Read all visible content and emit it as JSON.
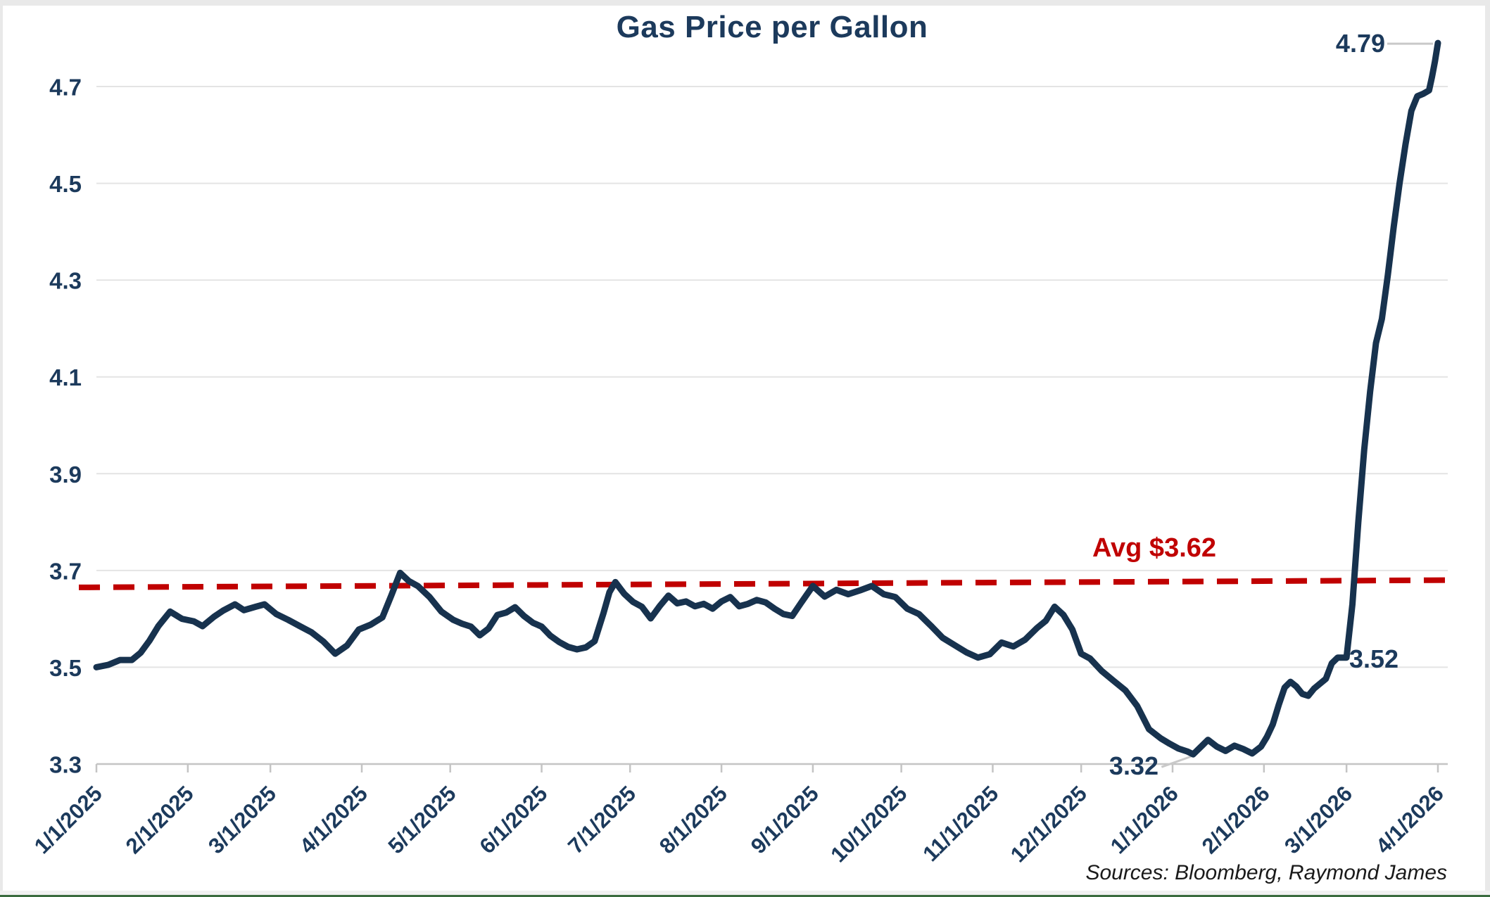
{
  "chart": {
    "title": "Gas Price per Gallon",
    "source_note": "Sources: Bloomberg, Raymond James",
    "annotations": {
      "peak": "4.79",
      "pre_surge": "3.52",
      "low": "3.32",
      "avg_label": "Avg $3.62"
    },
    "colors": {
      "line": "#17324E",
      "label_text": "#1C3A5C",
      "avg_line": "#C00000",
      "gridline": "#E4E4E4",
      "axis": "#C4C4C4",
      "leader": "#C9C9C9",
      "source_text": "#1A1A1A",
      "bottom_border_green": "#3A6B3E"
    }
  },
  "chart_data": {
    "type": "line",
    "title": "Gas Price per Gallon",
    "xlabel": "",
    "ylabel": "",
    "x_range": [
      "1/1/2025",
      "4/1/2026"
    ],
    "x_tick_labels": [
      "1/1/2025",
      "2/1/2025",
      "3/1/2025",
      "4/1/2025",
      "5/1/2025",
      "6/1/2025",
      "7/1/2025",
      "8/1/2025",
      "9/1/2025",
      "10/1/2025",
      "11/1/2025",
      "12/1/2025",
      "1/1/2026",
      "2/1/2026",
      "3/1/2026",
      "4/1/2026"
    ],
    "y_ticks": [
      3.3,
      3.5,
      3.7,
      3.9,
      4.1,
      4.3,
      4.5,
      4.7
    ],
    "ylim": [
      3.3,
      4.84
    ],
    "grid": "horizontal",
    "legend": "none",
    "avg_line": {
      "label": "Avg $3.62",
      "stated_value": 3.62,
      "drawn_start_value": 3.665,
      "drawn_end_value": 3.68,
      "style": "dashed",
      "color": "#C00000"
    },
    "annotations": [
      {
        "text": "4.79",
        "date": "4/1/2026",
        "value": 4.79,
        "leader_line": true
      },
      {
        "text": "3.52",
        "date": "3/1/2026",
        "value": 3.52,
        "leader_line": false
      },
      {
        "text": "3.32",
        "date": "1/8/2026",
        "value": 3.32,
        "leader_line": true
      }
    ],
    "series": [
      {
        "name": "Gas Price per Gallon",
        "color": "#17324E",
        "points": [
          [
            "1/1/2025",
            3.5
          ],
          [
            "1/5/2025",
            3.505
          ],
          [
            "1/9/2025",
            3.515
          ],
          [
            "1/13/2025",
            3.515
          ],
          [
            "1/16/2025",
            3.53
          ],
          [
            "1/19/2025",
            3.555
          ],
          [
            "1/22/2025",
            3.585
          ],
          [
            "1/26/2025",
            3.615
          ],
          [
            "1/30/2025",
            3.6
          ],
          [
            "2/3/2025",
            3.595
          ],
          [
            "2/6/2025",
            3.585
          ],
          [
            "2/10/2025",
            3.605
          ],
          [
            "2/13/2025",
            3.617
          ],
          [
            "2/17/2025",
            3.63
          ],
          [
            "2/20/2025",
            3.618
          ],
          [
            "2/24/2025",
            3.625
          ],
          [
            "2/27/2025",
            3.63
          ],
          [
            "3/3/2025",
            3.61
          ],
          [
            "3/7/2025",
            3.598
          ],
          [
            "3/11/2025",
            3.585
          ],
          [
            "3/15/2025",
            3.572
          ],
          [
            "3/19/2025",
            3.553
          ],
          [
            "3/23/2025",
            3.528
          ],
          [
            "3/27/2025",
            3.545
          ],
          [
            "3/31/2025",
            3.578
          ],
          [
            "4/4/2025",
            3.588
          ],
          [
            "4/8/2025",
            3.603
          ],
          [
            "4/11/2025",
            3.648
          ],
          [
            "4/14/2025",
            3.695
          ],
          [
            "4/17/2025",
            3.678
          ],
          [
            "4/20/2025",
            3.668
          ],
          [
            "4/24/2025",
            3.645
          ],
          [
            "4/28/2025",
            3.615
          ],
          [
            "5/2/2025",
            3.598
          ],
          [
            "5/5/2025",
            3.59
          ],
          [
            "5/8/2025",
            3.584
          ],
          [
            "5/11/2025",
            3.566
          ],
          [
            "5/14/2025",
            3.58
          ],
          [
            "5/17/2025",
            3.608
          ],
          [
            "5/20/2025",
            3.613
          ],
          [
            "5/23/2025",
            3.624
          ],
          [
            "5/26/2025",
            3.606
          ],
          [
            "5/29/2025",
            3.592
          ],
          [
            "6/1/2025",
            3.584
          ],
          [
            "6/4/2025",
            3.565
          ],
          [
            "6/7/2025",
            3.552
          ],
          [
            "6/10/2025",
            3.542
          ],
          [
            "6/13/2025",
            3.537
          ],
          [
            "6/16/2025",
            3.541
          ],
          [
            "6/19/2025",
            3.554
          ],
          [
            "6/22/2025",
            3.612
          ],
          [
            "6/24/2025",
            3.655
          ],
          [
            "6/26/2025",
            3.676
          ],
          [
            "6/29/2025",
            3.652
          ],
          [
            "7/2/2025",
            3.635
          ],
          [
            "7/5/2025",
            3.625
          ],
          [
            "7/8/2025",
            3.601
          ],
          [
            "7/11/2025",
            3.626
          ],
          [
            "7/14/2025",
            3.648
          ],
          [
            "7/17/2025",
            3.632
          ],
          [
            "7/20/2025",
            3.636
          ],
          [
            "7/23/2025",
            3.626
          ],
          [
            "7/26/2025",
            3.631
          ],
          [
            "7/29/2025",
            3.621
          ],
          [
            "8/1/2025",
            3.636
          ],
          [
            "8/4/2025",
            3.645
          ],
          [
            "8/7/2025",
            3.626
          ],
          [
            "8/10/2025",
            3.631
          ],
          [
            "8/13/2025",
            3.639
          ],
          [
            "8/16/2025",
            3.634
          ],
          [
            "8/19/2025",
            3.621
          ],
          [
            "8/22/2025",
            3.61
          ],
          [
            "8/25/2025",
            3.606
          ],
          [
            "8/28/2025",
            3.633
          ],
          [
            "9/1/2025",
            3.668
          ],
          [
            "9/5/2025",
            3.646
          ],
          [
            "9/9/2025",
            3.66
          ],
          [
            "9/13/2025",
            3.651
          ],
          [
            "9/17/2025",
            3.659
          ],
          [
            "9/21/2025",
            3.668
          ],
          [
            "9/25/2025",
            3.651
          ],
          [
            "9/29/2025",
            3.645
          ],
          [
            "10/3/2025",
            3.621
          ],
          [
            "10/7/2025",
            3.61
          ],
          [
            "10/11/2025",
            3.586
          ],
          [
            "10/15/2025",
            3.561
          ],
          [
            "10/19/2025",
            3.546
          ],
          [
            "10/23/2025",
            3.531
          ],
          [
            "10/27/2025",
            3.52
          ],
          [
            "10/31/2025",
            3.527
          ],
          [
            "11/4/2025",
            3.551
          ],
          [
            "11/8/2025",
            3.543
          ],
          [
            "11/12/2025",
            3.557
          ],
          [
            "11/16/2025",
            3.581
          ],
          [
            "11/19/2025",
            3.596
          ],
          [
            "11/22/2025",
            3.625
          ],
          [
            "11/25/2025",
            3.608
          ],
          [
            "11/28/2025",
            3.578
          ],
          [
            "12/1/2025",
            3.528
          ],
          [
            "12/4/2025",
            3.518
          ],
          [
            "12/8/2025",
            3.492
          ],
          [
            "12/12/2025",
            3.472
          ],
          [
            "12/16/2025",
            3.452
          ],
          [
            "12/20/2025",
            3.42
          ],
          [
            "12/24/2025",
            3.372
          ],
          [
            "12/28/2025",
            3.353
          ],
          [
            "12/31/2025",
            3.342
          ],
          [
            "1/3/2026",
            3.332
          ],
          [
            "1/6/2026",
            3.326
          ],
          [
            "1/8/2026",
            3.32
          ],
          [
            "1/11/2026",
            3.338
          ],
          [
            "1/13/2026",
            3.35
          ],
          [
            "1/16/2026",
            3.336
          ],
          [
            "1/19/2026",
            3.327
          ],
          [
            "1/22/2026",
            3.338
          ],
          [
            "1/25/2026",
            3.331
          ],
          [
            "1/28/2026",
            3.322
          ],
          [
            "1/31/2026",
            3.336
          ],
          [
            "2/2/2026",
            3.356
          ],
          [
            "2/4/2026",
            3.382
          ],
          [
            "2/6/2026",
            3.422
          ],
          [
            "2/8/2026",
            3.458
          ],
          [
            "2/10/2026",
            3.47
          ],
          [
            "2/12/2026",
            3.46
          ],
          [
            "2/14/2026",
            3.445
          ],
          [
            "2/16/2026",
            3.441
          ],
          [
            "2/18/2026",
            3.456
          ],
          [
            "2/20/2026",
            3.466
          ],
          [
            "2/22/2026",
            3.476
          ],
          [
            "2/24/2026",
            3.508
          ],
          [
            "2/26/2026",
            3.52
          ],
          [
            "3/1/2026",
            3.52
          ],
          [
            "3/3/2026",
            3.63
          ],
          [
            "3/5/2026",
            3.8
          ],
          [
            "3/7/2026",
            3.95
          ],
          [
            "3/9/2026",
            4.07
          ],
          [
            "3/11/2026",
            4.17
          ],
          [
            "3/13/2026",
            4.22
          ],
          [
            "3/15/2026",
            4.31
          ],
          [
            "3/17/2026",
            4.41
          ],
          [
            "3/19/2026",
            4.5
          ],
          [
            "3/21/2026",
            4.58
          ],
          [
            "3/23/2026",
            4.65
          ],
          [
            "3/25/2026",
            4.68
          ],
          [
            "3/27/2026",
            4.685
          ],
          [
            "3/29/2026",
            4.692
          ],
          [
            "3/30/2026",
            4.72
          ],
          [
            "3/31/2026",
            4.752
          ],
          [
            "4/1/2026",
            4.79
          ]
        ]
      }
    ]
  }
}
